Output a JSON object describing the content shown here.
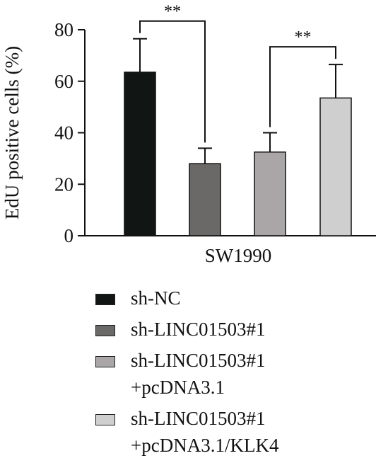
{
  "chart_data": {
    "type": "bar",
    "title": "",
    "xlabel": "SW1990",
    "ylabel": "EdU positive cells (%)",
    "ylim": [
      0,
      80
    ],
    "yticks": [
      0,
      20,
      40,
      60,
      80
    ],
    "grid": false,
    "legend_position": "bottom",
    "series": [
      {
        "name": "sh-NC",
        "value": 63.5,
        "error": 13,
        "color": "#111514"
      },
      {
        "name": "sh-LINC01503#1",
        "value": 28,
        "error": 6,
        "color": "#6b6868"
      },
      {
        "name": "sh-LINC01503#1 +pcDNA3.1",
        "value": 32.5,
        "error": 7.5,
        "color": "#aaa6a7"
      },
      {
        "name": "sh-LINC01503#1 +pcDNA3.1/KLK4",
        "value": 53.5,
        "error": 13,
        "color": "#cfcfcf"
      }
    ],
    "significance": [
      {
        "from": 0,
        "to": 1,
        "label": "**"
      },
      {
        "from": 2,
        "to": 3,
        "label": "**"
      }
    ]
  },
  "legend": [
    {
      "lines": [
        "sh-NC"
      ]
    },
    {
      "lines": [
        "sh-LINC01503#1"
      ]
    },
    {
      "lines": [
        "sh-LINC01503#1",
        "+pcDNA3.1"
      ]
    },
    {
      "lines": [
        "sh-LINC01503#1",
        "+pcDNA3.1/KLK4"
      ]
    }
  ]
}
